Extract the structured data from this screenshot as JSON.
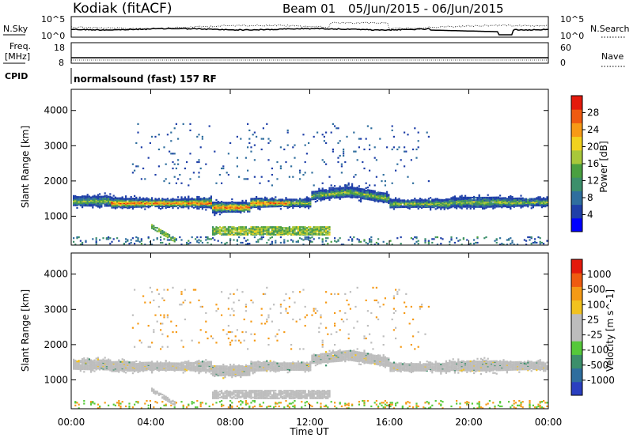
{
  "header": {
    "station": "Kodiak (fitACF)",
    "beam": "Beam 01",
    "date_range": "05/Jun/2015 - 06/Jun/2015"
  },
  "top_panels": {
    "nsky_label": "N.Sky",
    "nsearch_label": "N.Search",
    "nsky_ticks": [
      "10^5",
      "10^0"
    ],
    "nsearch_ticks": [
      "10^5",
      "10^0"
    ],
    "freq_label_1": "Freq.",
    "freq_label_2": "[MHz]",
    "freq_ticks": [
      "18",
      "8"
    ],
    "nave_label": "Nave",
    "nave_ticks": [
      "60",
      "0"
    ],
    "cpid_label": "CPID",
    "cpid_value": "normalsound (fast) 157 RF"
  },
  "chart_data": [
    {
      "type": "heatmap",
      "name": "power",
      "ylabel": "Slant Range [km]",
      "yticks": [
        "4000",
        "3000",
        "2000",
        "1000"
      ],
      "ylim": [
        180,
        4600
      ],
      "colorbar_label": "Power [dB]",
      "colorbar_ticks": [
        "28",
        "24",
        "20",
        "16",
        "12",
        "8",
        "4"
      ],
      "colorbar_colors": [
        "#0000ff",
        "#1f3fa8",
        "#2f6e9e",
        "#3c8f6b",
        "#4aa040",
        "#a8c83a",
        "#f2d21e",
        "#f79a16",
        "#ef5b10",
        "#e41a0c"
      ],
      "echo_bands": [
        {
          "label": "main band",
          "start_hour": 0.0,
          "end_hour": 24.0,
          "range_km": [
            1300,
            1550
          ]
        },
        {
          "label": "lower band",
          "start_hour": 7.0,
          "end_hour": 13.0,
          "range_km": [
            500,
            700
          ]
        },
        {
          "label": "diagonal patch",
          "start_hour": 4.0,
          "end_hour": 5.0,
          "range_km": [
            350,
            750
          ]
        }
      ]
    },
    {
      "type": "heatmap",
      "name": "velocity",
      "ylabel": "Slant Range [km]",
      "yticks": [
        "4000",
        "3000",
        "2000",
        "1000"
      ],
      "ylim": [
        180,
        4600
      ],
      "colorbar_label": "Velocity [m s^-1]",
      "colorbar_ticks": [
        "1000",
        "500",
        "100",
        "25",
        "-25",
        "-100",
        "-500",
        "-1000"
      ],
      "colorbar_colors": [
        "#2a3fc0",
        "#2f6e9e",
        "#3c8f6b",
        "#56c93a",
        "#bdbdbd",
        "#bdbdbd",
        "#f2c21e",
        "#f59a16",
        "#ef5b10",
        "#e41a0c"
      ],
      "ground_scatter_color": "#bdbdbd"
    }
  ],
  "x_axis": {
    "label": "Time UT",
    "ticks": [
      "00:00",
      "04:00",
      "08:00",
      "12:00",
      "16:00",
      "20:00",
      "00:00"
    ],
    "xlim_hours": [
      0,
      24
    ]
  }
}
